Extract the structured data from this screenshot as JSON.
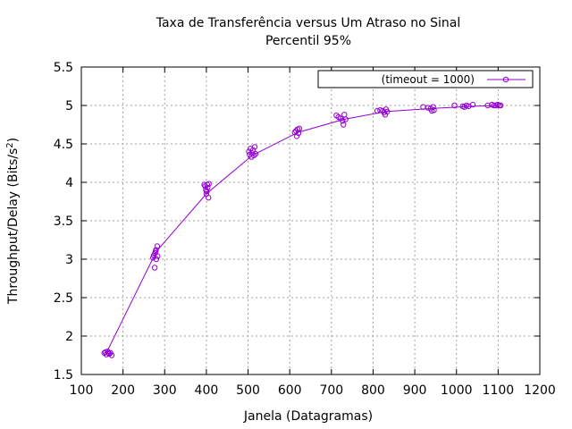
{
  "chart_data": {
    "type": "line",
    "title": "Taxa de Transferência versus Um Atraso no Sinal",
    "subtitle": "Percentil 95%",
    "xlabel": "Janela (Datagramas)",
    "ylabel": "Throughput/Delay (Bits/s",
    "ylabel_superscript": "2",
    "ylabel_close": ")",
    "xlim": [
      100,
      1200
    ],
    "ylim": [
      1.5,
      5.5
    ],
    "x_ticks": [
      100,
      200,
      300,
      400,
      500,
      600,
      700,
      800,
      900,
      1000,
      1100,
      1200
    ],
    "y_ticks": [
      1.5,
      2,
      2.5,
      3,
      3.5,
      4,
      4.5,
      5,
      5.5
    ],
    "grid": true,
    "legend_position": "top-right",
    "color": "#9400d3",
    "series": [
      {
        "name": "(timeout = 1000)",
        "line": [
          [
            160,
            1.78
          ],
          [
            280,
            3.1
          ],
          [
            400,
            3.85
          ],
          [
            510,
            4.35
          ],
          [
            620,
            4.65
          ],
          [
            730,
            4.82
          ],
          [
            830,
            4.92
          ],
          [
            940,
            4.96
          ],
          [
            1040,
            4.99
          ],
          [
            1100,
            5.0
          ]
        ],
        "points": [
          [
            155,
            1.78
          ],
          [
            160,
            1.76
          ],
          [
            163,
            1.8
          ],
          [
            167,
            1.77
          ],
          [
            170,
            1.78
          ],
          [
            173,
            1.75
          ],
          [
            158,
            1.79
          ],
          [
            165,
            1.78
          ],
          [
            272,
            3.02
          ],
          [
            274,
            3.05
          ],
          [
            276,
            2.89
          ],
          [
            277,
            3.08
          ],
          [
            279,
            3.12
          ],
          [
            280,
            3.0
          ],
          [
            282,
            3.17
          ],
          [
            283,
            3.04
          ],
          [
            278,
            3.1
          ],
          [
            395,
            3.97
          ],
          [
            397,
            3.95
          ],
          [
            399,
            3.9
          ],
          [
            400,
            3.85
          ],
          [
            402,
            3.97
          ],
          [
            403,
            3.93
          ],
          [
            405,
            3.8
          ],
          [
            406,
            3.98
          ],
          [
            401,
            3.88
          ],
          [
            502,
            4.4
          ],
          [
            504,
            4.36
          ],
          [
            506,
            4.44
          ],
          [
            508,
            4.33
          ],
          [
            510,
            4.38
          ],
          [
            512,
            4.42
          ],
          [
            514,
            4.35
          ],
          [
            516,
            4.46
          ],
          [
            518,
            4.37
          ],
          [
            612,
            4.65
          ],
          [
            615,
            4.67
          ],
          [
            617,
            4.6
          ],
          [
            619,
            4.69
          ],
          [
            621,
            4.64
          ],
          [
            623,
            4.7
          ],
          [
            712,
            4.87
          ],
          [
            717,
            4.85
          ],
          [
            722,
            4.83
          ],
          [
            727,
            4.8
          ],
          [
            729,
            4.75
          ],
          [
            731,
            4.88
          ],
          [
            734,
            4.82
          ],
          [
            810,
            4.93
          ],
          [
            817,
            4.94
          ],
          [
            823,
            4.93
          ],
          [
            826,
            4.91
          ],
          [
            829,
            4.88
          ],
          [
            831,
            4.95
          ],
          [
            834,
            4.92
          ],
          [
            920,
            4.98
          ],
          [
            932,
            4.97
          ],
          [
            938,
            4.96
          ],
          [
            941,
            4.93
          ],
          [
            944,
            4.98
          ],
          [
            946,
            4.94
          ],
          [
            995,
            5.0
          ],
          [
            1015,
            4.99
          ],
          [
            1019,
            4.98
          ],
          [
            1024,
            5.0
          ],
          [
            1029,
            4.99
          ],
          [
            1039,
            5.01
          ],
          [
            1075,
            5.0
          ],
          [
            1085,
            5.01
          ],
          [
            1090,
            5.0
          ],
          [
            1095,
            5.0
          ],
          [
            1099,
            5.01
          ],
          [
            1103,
            5.0
          ],
          [
            1106,
            5.0
          ]
        ]
      }
    ]
  }
}
